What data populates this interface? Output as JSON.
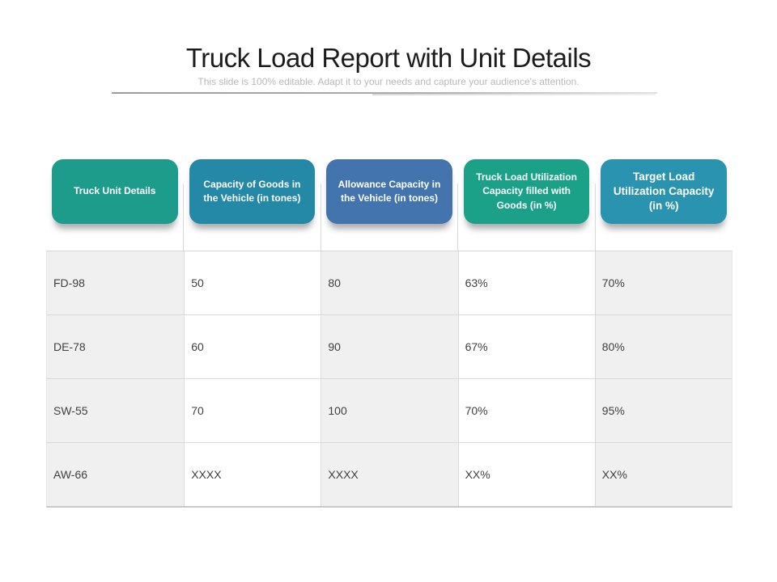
{
  "slide": {
    "title": "Truck Load Report with Unit Details",
    "subtitle": "This slide is 100% editable. Adapt it to your needs and capture your audience's attention."
  },
  "table": {
    "columns": [
      {
        "label": "Truck Unit Details",
        "color": "#1E9C8B"
      },
      {
        "label": "Capacity of Goods in the Vehicle (in tones)",
        "color": "#2489A7"
      },
      {
        "label": "Allowance Capacity in the Vehicle (in tones)",
        "color": "#4374AD"
      },
      {
        "label": "Truck Load Utilization Capacity filled with Goods (in %)",
        "color": "#1CA189"
      },
      {
        "label": "Target Load Utilization Capacity (in %)",
        "color": "#2A93B0"
      }
    ],
    "rows": [
      {
        "cells": [
          "FD-98",
          "50",
          "80",
          "63%",
          "70%"
        ]
      },
      {
        "cells": [
          "DE-78",
          "60",
          "90",
          "67%",
          "80%"
        ]
      },
      {
        "cells": [
          "SW-55",
          "70",
          "100",
          "70%",
          "95%"
        ]
      },
      {
        "cells": [
          "AW-66",
          "XXXX",
          "XXXX",
          "XX%",
          "XX%"
        ]
      }
    ]
  }
}
